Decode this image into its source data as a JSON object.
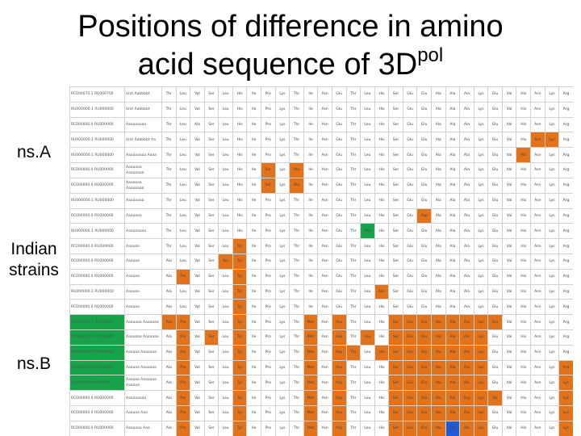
{
  "title": {
    "line1": "Positions of difference in amino",
    "line2": "acid sequence of 3D",
    "sup": "pol"
  },
  "labels": {
    "nsA": "ns.A",
    "indian1": "Indian",
    "indian2": "strains",
    "nsB": "ns.B"
  },
  "colors": {
    "orange": "#e2731b",
    "green": "#16a34a",
    "blue": "#1f5bd6"
  },
  "rows": [
    {
      "acc": "RC000070.1 RU000700",
      "name": "Unit Aabbbbt",
      "cells": [
        "Thr",
        "Leu",
        "Val",
        "Ser",
        "Leu",
        "His",
        "Ile",
        "Pro",
        "Lys",
        "Thr",
        "Ile",
        "Asn",
        "Glu",
        "Thr",
        "Leu",
        "His",
        "Ser",
        "Glu",
        "Glu",
        "Ala",
        "Ala",
        "Ala",
        "Lys",
        "Glu",
        "Val",
        "His",
        "Asn",
        "Lys",
        "Arg"
      ],
      "hl": {}
    },
    {
      "acc": "RU000000.1 RU000000",
      "name": "Unit Aabbbbt",
      "cells": [
        "Thr",
        "Leu",
        "Val",
        "Ser",
        "Leu",
        "His",
        "Ile",
        "Pro",
        "Lys",
        "Thr",
        "Ile",
        "Asn",
        "Glu",
        "Thr",
        "Leu",
        "His",
        "Ser",
        "Glu",
        "Glu",
        "Ala",
        "Ala",
        "Ala",
        "Lys",
        "Glu",
        "Val",
        "His",
        "Asn",
        "Lys",
        "Arg"
      ],
      "hl": {}
    },
    {
      "acc": "RC000000.0 RU000000",
      "name": "Aaaaaaaaa",
      "cells": [
        "Thr",
        "Leu",
        "Ala",
        "Ser",
        "Leu",
        "His",
        "Ile",
        "Pro",
        "Lys",
        "Thr",
        "Ile",
        "Asn",
        "Glu",
        "Thr",
        "Leu",
        "His",
        "Ser",
        "Glu",
        "Glu",
        "Ala",
        "Ala",
        "Ala",
        "Lys",
        "Glu",
        "Val",
        "His",
        "Asn",
        "Lys",
        "Arg"
      ],
      "hl": {}
    },
    {
      "acc": "RU000000.1 RU000000",
      "name": "Unit Aabbbbt Aa",
      "cells": [
        "Thr",
        "Leu",
        "Val",
        "Ser",
        "Leu",
        "His",
        "Ile",
        "Pro",
        "Lys",
        "Thr",
        "Ile",
        "Asn",
        "Glu",
        "Thr",
        "Leu",
        "His",
        "Ser",
        "Glu",
        "Glu",
        "Ala",
        "Ala",
        "Ala",
        "Lys",
        "Glu",
        "Val",
        "His",
        "Asn",
        "Lys",
        "Arg"
      ],
      "hl": {
        "26": "o",
        "27": "o"
      }
    },
    {
      "acc": "RU000000.1 RU000000",
      "name": "Aaaaaaaaa Aaaa",
      "cells": [
        "Thr",
        "Leu",
        "Val",
        "Ser",
        "Leu",
        "His",
        "Ile",
        "Pro",
        "Lys",
        "Thr",
        "Ile",
        "Asn",
        "Glu",
        "Thr",
        "Leu",
        "His",
        "Ser",
        "Glu",
        "Glu",
        "Ala",
        "Ala",
        "Ala",
        "Lys",
        "Glu",
        "Val",
        "His",
        "Asn",
        "Lys",
        "Arg"
      ],
      "hl": {
        "25": "o"
      }
    },
    {
      "acc": "RC000000.0 RU000000",
      "name": "Aaaaaaa Aaaaaaaa",
      "cells": [
        "Thr",
        "Leu",
        "Val",
        "Ser",
        "Leu",
        "His",
        "Ile",
        "Ser",
        "Lys",
        "Ala",
        "Ile",
        "Asn",
        "Glu",
        "Thr",
        "Leu",
        "His",
        "Ser",
        "Glu",
        "Glu",
        "Ala",
        "Ala",
        "Ala",
        "Lys",
        "Glu",
        "Val",
        "His",
        "Asn",
        "Lys",
        "Arg"
      ],
      "hl": {
        "7": "o",
        "9": "o"
      }
    },
    {
      "acc": "RC000000.0 RU000000",
      "name": "Aaaaaaa Aaaaaaaa",
      "cells": [
        "Thr",
        "Leu",
        "Val",
        "Ser",
        "Leu",
        "His",
        "Ile",
        "Ser",
        "Lys",
        "Ala",
        "Ile",
        "Asn",
        "Glu",
        "Thr",
        "Leu",
        "His",
        "Ser",
        "Glu",
        "Glu",
        "Ala",
        "Ala",
        "Ala",
        "Lys",
        "Glu",
        "Val",
        "His",
        "Asn",
        "Lys",
        "Arg"
      ],
      "hl": {
        "7": "o",
        "9": "o"
      }
    },
    {
      "acc": "RU000000.1 RU000000",
      "name": "Aaaaaaaa",
      "cells": [
        "Thr",
        "Leu",
        "Val",
        "Ser",
        "Leu",
        "His",
        "Ile",
        "Pro",
        "Lys",
        "Thr",
        "Ile",
        "Asn",
        "Glu",
        "Thr",
        "Leu",
        "His",
        "Ser",
        "Glu",
        "Glu",
        "Ala",
        "Ala",
        "Ala",
        "Lys",
        "Glu",
        "Val",
        "His",
        "Asn",
        "Lys",
        "Arg"
      ],
      "hl": {}
    },
    {
      "acc": "RC000000.0 RU000000",
      "name": "Aaaaaaa",
      "cells": [
        "Thr",
        "Leu",
        "Val",
        "Ser",
        "Leu",
        "His",
        "Ile",
        "Pro",
        "Lys",
        "Thr",
        "Ile",
        "Asn",
        "Glu",
        "Thr",
        "Leu",
        "His",
        "Ser",
        "Glu",
        "Asp",
        "Ala",
        "Ala",
        "Ala",
        "Lys",
        "Glu",
        "Val",
        "His",
        "Asn",
        "Lys",
        "Arg"
      ],
      "hl": {
        "18": "o"
      }
    },
    {
      "acc": "RU000000.1 RU000000",
      "name": "Aaaaaaaaa",
      "cells": [
        "Thr",
        "Leu",
        "Val",
        "Ser",
        "Leu",
        "His",
        "Ile",
        "Pro",
        "Lys",
        "Thr",
        "Ile",
        "Asn",
        "Glu",
        "Thr",
        "Asp",
        "His",
        "Ser",
        "Glu",
        "Glu",
        "Ala",
        "Ala",
        "Ala",
        "Lys",
        "Glu",
        "Val",
        "His",
        "Asn",
        "Lys",
        "Arg"
      ],
      "hl": {
        "14": "g"
      }
    },
    {
      "acc": "RC000000.0 RU000000",
      "name": "Aaaaaa",
      "cells": [
        "Thr",
        "Leu",
        "Val",
        "Ser",
        "Leu",
        "Tyr",
        "Ile",
        "Pro",
        "Lys",
        "Thr",
        "Ile",
        "Asn",
        "Glu",
        "Thr",
        "Leu",
        "His",
        "Ser",
        "Glu",
        "Glu",
        "Ala",
        "Ala",
        "Ala",
        "Lys",
        "Glu",
        "Val",
        "His",
        "Asn",
        "Lys",
        "Arg"
      ],
      "hl": {
        "5": "o"
      }
    },
    {
      "acc": "RC000000.0 RU000000",
      "name": "Aaaaaa",
      "cells": [
        "Ala",
        "Leu",
        "Val",
        "Ser",
        "Ser",
        "Tyr",
        "Ile",
        "Pro",
        "Lys",
        "Thr",
        "Ile",
        "Asn",
        "Glu",
        "Thr",
        "Leu",
        "His",
        "Ser",
        "Glu",
        "Glu",
        "Ala",
        "Ala",
        "Ala",
        "Lys",
        "Glu",
        "Val",
        "His",
        "Asn",
        "Lys",
        "Arg"
      ],
      "hl": {
        "4": "o",
        "5": "o"
      }
    },
    {
      "acc": "RC000000.0 RU000000",
      "name": "Aaaaaa",
      "cells": [
        "Ala",
        "Pro",
        "Val",
        "Ser",
        "Leu",
        "Tyr",
        "Ile",
        "Pro",
        "Lys",
        "Thr",
        "Ile",
        "Asn",
        "Glu",
        "Thr",
        "Leu",
        "His",
        "Ser",
        "Glu",
        "Glu",
        "Ala",
        "Ala",
        "Ala",
        "Lys",
        "Glu",
        "Val",
        "His",
        "Asn",
        "Lys",
        "Arg"
      ],
      "hl": {
        "1": "o",
        "5": "o"
      }
    },
    {
      "acc": "RU000000.1 RU000000",
      "name": "Aaaaaa",
      "cells": [
        "Ala",
        "Leu",
        "Val",
        "Ser",
        "Leu",
        "Tyr",
        "Ile",
        "Pro",
        "Lys",
        "Thr",
        "Ile",
        "Asn",
        "Glu",
        "Thr",
        "Leu",
        "Asn",
        "Ser",
        "Glu",
        "Glu",
        "Ala",
        "Ala",
        "Ala",
        "Lys",
        "Glu",
        "Val",
        "His",
        "Asn",
        "Lys",
        "Arg"
      ],
      "hl": {
        "5": "o",
        "15": "o"
      }
    },
    {
      "acc": "RC000000.0 RU000000",
      "name": "Aaaaaa",
      "cells": [
        "Ala",
        "Leu",
        "Val",
        "Ser",
        "Leu",
        "Tyr",
        "Ile",
        "Pro",
        "Lys",
        "Thr",
        "Ile",
        "Asn",
        "Glu",
        "Thr",
        "Leu",
        "His",
        "Ser",
        "Glu",
        "Glu",
        "Ala",
        "Ala",
        "Ala",
        "Lys",
        "Glu",
        "Val",
        "His",
        "Asn",
        "Lys",
        "Arg"
      ],
      "hl": {
        "5": "o"
      }
    },
    {
      "acc": "RU000000.1 RU000000",
      "name": "Aaaaaaa Aaaaaaa",
      "cells": [
        "Ala",
        "Pro",
        "Val",
        "Ser",
        "Leu",
        "Tyr",
        "Ile",
        "Pro",
        "Lys",
        "Thr",
        "Met",
        "Asn",
        "Asp",
        "Thr",
        "Leu",
        "His",
        "Ser",
        "Glu",
        "Glu",
        "Ala",
        "Ala",
        "Ala",
        "Lys",
        "Glu",
        "Val",
        "His",
        "Asn",
        "Lys",
        "Arg"
      ],
      "hl": {
        "0": "o",
        "1": "o",
        "5": "o",
        "10": "o",
        "12": "o",
        "16": "o",
        "17": "o",
        "18": "o",
        "19": "o",
        "20": "o",
        "21": "o",
        "22": "o",
        "23": "o"
      },
      "acc_hl": "g"
    },
    {
      "acc": "RC000000.0 RU000000",
      "name": "Aaaaaaa Aaaaaaa",
      "cells": [
        "Ala",
        "Pro",
        "Val",
        "Ser",
        "Leu",
        "Tyr",
        "Ile",
        "Pro",
        "Lys",
        "Thr",
        "Met",
        "Asn",
        "Asp",
        "Thr",
        "Leu",
        "His",
        "Ser",
        "Glu",
        "Glu",
        "Ala",
        "Ala",
        "Ala",
        "Lys",
        "Glu",
        "Val",
        "His",
        "Asn",
        "Lys",
        "Arg"
      ],
      "hl": {
        "1": "o",
        "3": "o",
        "5": "o",
        "10": "o",
        "12": "o",
        "14": "o",
        "16": "o",
        "17": "o",
        "18": "o",
        "19": "o",
        "20": "o",
        "21": "o",
        "22": "o"
      },
      "acc_hl": "g"
    },
    {
      "acc": "RC000000.0 RU000000",
      "name": "Aaaaaa Aaaaaaa",
      "cells": [
        "Ala",
        "Pro",
        "Val",
        "Ser",
        "Leu",
        "Tyr",
        "Ile",
        "Pro",
        "Lys",
        "Thr",
        "Met",
        "Asn",
        "Asp",
        "Thr",
        "Leu",
        "His",
        "Ser",
        "Glu",
        "Glu",
        "Ala",
        "Ala",
        "Ala",
        "Lys",
        "Glu",
        "Val",
        "His",
        "Asn",
        "Lys",
        "Arg"
      ],
      "hl": {
        "1": "o",
        "5": "o",
        "10": "o",
        "12": "o",
        "13": "o",
        "15": "o",
        "16": "o",
        "17": "o",
        "18": "o",
        "19": "o",
        "20": "o",
        "21": "o",
        "22": "o"
      },
      "acc_hl": "g"
    },
    {
      "acc": "RC000000.0 RU000000",
      "name": "Aaaaaa Aaaaaaa",
      "cells": [
        "Ala",
        "Pro",
        "Val",
        "Ser",
        "Leu",
        "Tyr",
        "Ile",
        "Pro",
        "Lys",
        "Thr",
        "Met",
        "Asn",
        "Asp",
        "Thr",
        "Leu",
        "His",
        "Ser",
        "Glu",
        "Glu",
        "Ala",
        "Ala",
        "Ala",
        "Lys",
        "Glu",
        "Val",
        "His",
        "Asn",
        "Lys",
        "Arg"
      ],
      "hl": {
        "1": "o",
        "5": "o",
        "10": "o",
        "12": "o",
        "16": "o",
        "17": "o",
        "18": "o",
        "19": "o",
        "20": "o",
        "21": "o",
        "22": "o",
        "28": "o"
      },
      "acc_hl": "g"
    },
    {
      "acc": "RC000000 RU000000",
      "name": "Aaaaaa Aaaaaaa Aaaaaa",
      "cells": [
        "Ala",
        "Pro",
        "Val",
        "Ser",
        "Leu",
        "Tyr",
        "Ile",
        "Pro",
        "Lys",
        "Thr",
        "Met",
        "Asn",
        "Asp",
        "Thr",
        "Leu",
        "His",
        "Ser",
        "Glu",
        "Glu",
        "Ala",
        "Ala",
        "Ala",
        "Lys",
        "Glu",
        "Val",
        "His",
        "Asn",
        "Lys",
        "Lys"
      ],
      "hl": {
        "1": "o",
        "5": "o",
        "10": "o",
        "12": "o",
        "16": "o",
        "17": "o",
        "18": "o",
        "19": "o",
        "20": "o",
        "21": "o",
        "22": "o",
        "28": "o"
      },
      "acc_hl": "g"
    },
    {
      "acc": "RC000000.0 RU000000",
      "name": "Aaaaaaaaa",
      "cells": [
        "Ala",
        "Pro",
        "Val",
        "Ser",
        "Leu",
        "Tyr",
        "Ile",
        "Pro",
        "Lys",
        "Thr",
        "Met",
        "Asn",
        "Asp",
        "Thr",
        "Leu",
        "His",
        "Ser",
        "Glu",
        "Glu",
        "Ala",
        "Ala",
        "Asp",
        "Lys",
        "Tyr",
        "Val",
        "His",
        "Asn",
        "Lys",
        "Lys"
      ],
      "hl": {
        "1": "o",
        "5": "o",
        "10": "o",
        "12": "o",
        "16": "o",
        "17": "o",
        "18": "o",
        "19": "o",
        "20": "o",
        "21": "o",
        "22": "o",
        "23": "o",
        "28": "o"
      }
    },
    {
      "acc": "RC000000.0 RU000000",
      "name": "Aaaaaa Aaa",
      "cells": [
        "Ala",
        "Pro",
        "Val",
        "Ser",
        "Leu",
        "Tyr",
        "Ile",
        "Pro",
        "Lys",
        "Thr",
        "Met",
        "Asn",
        "Asp",
        "Thr",
        "Leu",
        "His",
        "Ser",
        "Glu",
        "Glu",
        "Ala",
        "Ala",
        "Ala",
        "Lys",
        "Glu",
        "Val",
        "His",
        "Asn",
        "Lys",
        "Lys"
      ],
      "hl": {
        "1": "o",
        "5": "o",
        "10": "o",
        "12": "o",
        "16": "o",
        "17": "o",
        "18": "o",
        "19": "o",
        "20": "o",
        "21": "o",
        "22": "o",
        "28": "o"
      }
    },
    {
      "acc": "RC000000.0 RU000000",
      "name": "Aaaaaaa Aaa",
      "cells": [
        "Ala",
        "Pro",
        "Val",
        "Ser",
        "Leu",
        "Tyr",
        "Ile",
        "Pro",
        "Lys",
        "Thr",
        "Met",
        "Asn",
        "Asp",
        "Thr",
        "Leu",
        "His",
        "Ser",
        "Glu",
        "Glu",
        "Ala",
        "Thr",
        "Ala",
        "Lys",
        "Glu",
        "Val",
        "His",
        "Asn",
        "Lys",
        "Lys"
      ],
      "hl": {
        "1": "o",
        "5": "o",
        "10": "o",
        "12": "o",
        "16": "o",
        "17": "o",
        "18": "o",
        "19": "o",
        "20": "b",
        "21": "o",
        "22": "o",
        "28": "o"
      }
    }
  ]
}
